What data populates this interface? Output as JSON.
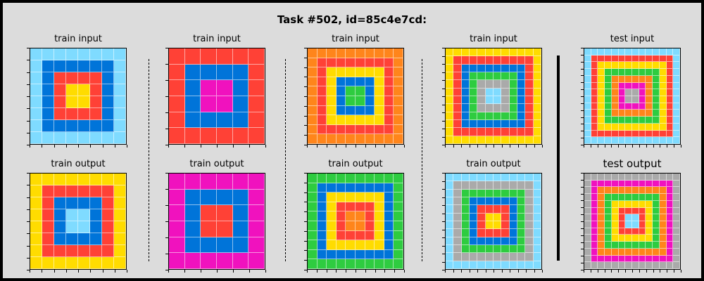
{
  "title": "Task #502, id=85c4e7cd:",
  "colors": {
    "0": "#000000",
    "1": "#0074d9",
    "2": "#ff4136",
    "3": "#2ecc40",
    "4": "#ffdc00",
    "5": "#aaaaaa",
    "6": "#f012be",
    "7": "#ff851b",
    "8": "#7fdbff",
    "9": "#870c25"
  },
  "panels": [
    {
      "label": "train input",
      "rings": [
        8,
        1,
        2,
        4
      ]
    },
    {
      "label": "train output",
      "rings": [
        4,
        2,
        1,
        8
      ]
    },
    {
      "label": "train input",
      "rings": [
        2,
        1,
        6
      ]
    },
    {
      "label": "train output",
      "rings": [
        6,
        1,
        2
      ]
    },
    {
      "label": "train input",
      "rings": [
        7,
        2,
        4,
        1,
        3
      ]
    },
    {
      "label": "train output",
      "rings": [
        3,
        1,
        4,
        2,
        7
      ]
    },
    {
      "label": "train input",
      "rings": [
        4,
        2,
        1,
        3,
        5,
        8
      ]
    },
    {
      "label": "train output",
      "rings": [
        8,
        5,
        3,
        1,
        2,
        4
      ]
    },
    {
      "label": "test input",
      "rings": [
        8,
        2,
        4,
        3,
        7,
        6,
        5
      ]
    },
    {
      "label": "test output",
      "rings": [
        5,
        6,
        7,
        3,
        4,
        2,
        8
      ]
    }
  ]
}
